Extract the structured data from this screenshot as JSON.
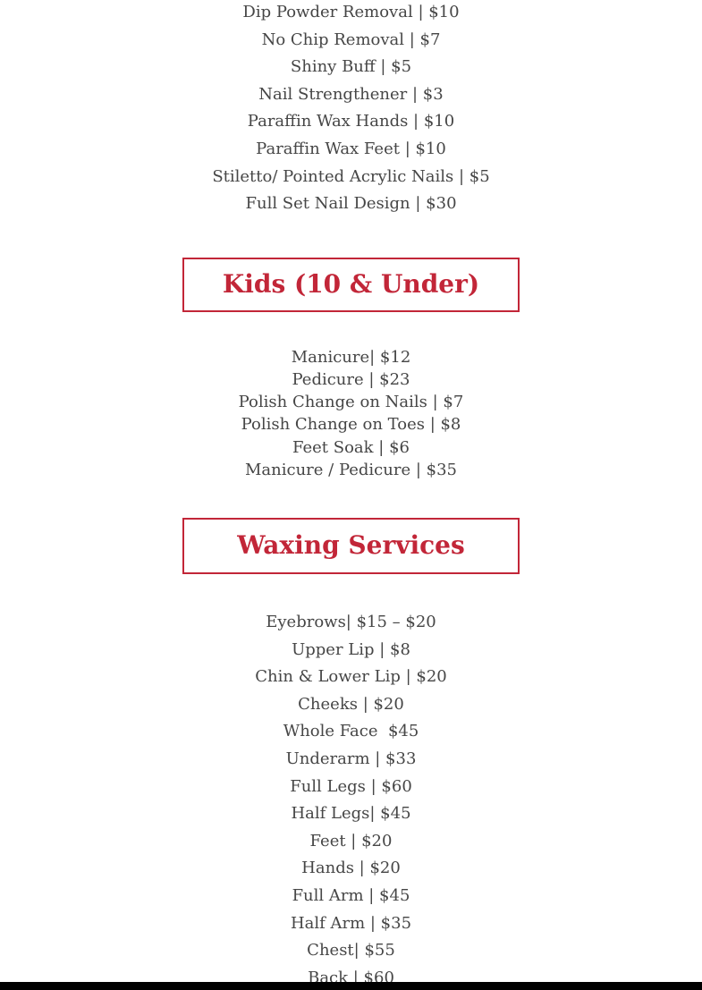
{
  "page": {
    "background": "#ffffff",
    "accent_red": "#c22638",
    "text_color": "#464646",
    "footer_bar_color": "#000000"
  },
  "nail_addons": {
    "items": [
      "Dip Powder Removal | $10",
      "No Chip Removal | $7",
      "Shiny Buff | $5",
      "Nail Strengthener | $3",
      "Paraffin Wax Hands | $10",
      "Paraffin Wax Feet | $10",
      "Stiletto/ Pointed Acrylic Nails | $5",
      "Full Set Nail Design | $30"
    ]
  },
  "kids_section": {
    "heading": "Kids (10 & Under)",
    "items": [
      "Manicure| $12",
      "Pedicure | $23",
      "Polish Change on Nails | $7",
      "Polish Change on Toes | $8",
      "Feet Soak | $6",
      "Manicure / Pedicure | $35"
    ]
  },
  "waxing_section": {
    "heading": "Waxing Services",
    "items": [
      "Eyebrows| $15 – $20",
      "Upper Lip | $8",
      "Chin & Lower Lip | $20",
      "Cheeks | $20",
      "Whole Face  $45",
      "Underarm | $33",
      "Full Legs | $60",
      "Half Legs| $45",
      "Feet | $20",
      "Hands | $20",
      "Full Arm | $45",
      "Half Arm | $35",
      "Chest| $55",
      "Back | $60"
    ]
  }
}
